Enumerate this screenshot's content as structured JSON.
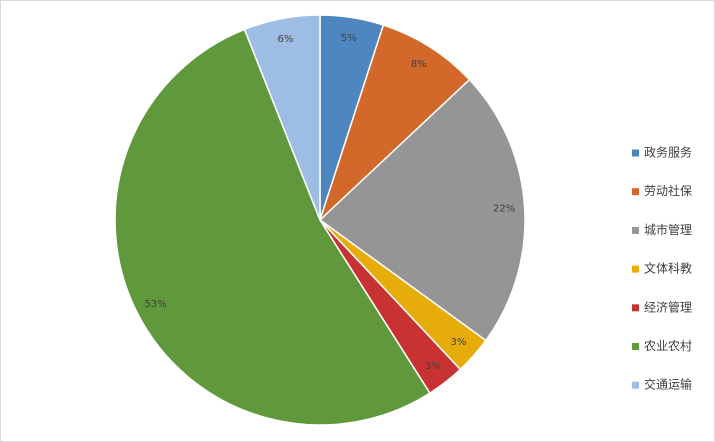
{
  "chart_data": {
    "type": "pie",
    "categories": [
      "政务服务",
      "劳动社保",
      "城市管理",
      "文体科教",
      "经济管理",
      "农业农村",
      "交通运输"
    ],
    "values": [
      5,
      8,
      22,
      3,
      3,
      53,
      6
    ],
    "value_labels": [
      "5%",
      "8%",
      "22%",
      "3%",
      "3%",
      "53%",
      "6%"
    ],
    "colors": [
      "#4e86c0",
      "#d2692a",
      "#959595",
      "#e5ac0a",
      "#c93232",
      "#5f993c",
      "#9ebde4"
    ],
    "legend": "right"
  }
}
